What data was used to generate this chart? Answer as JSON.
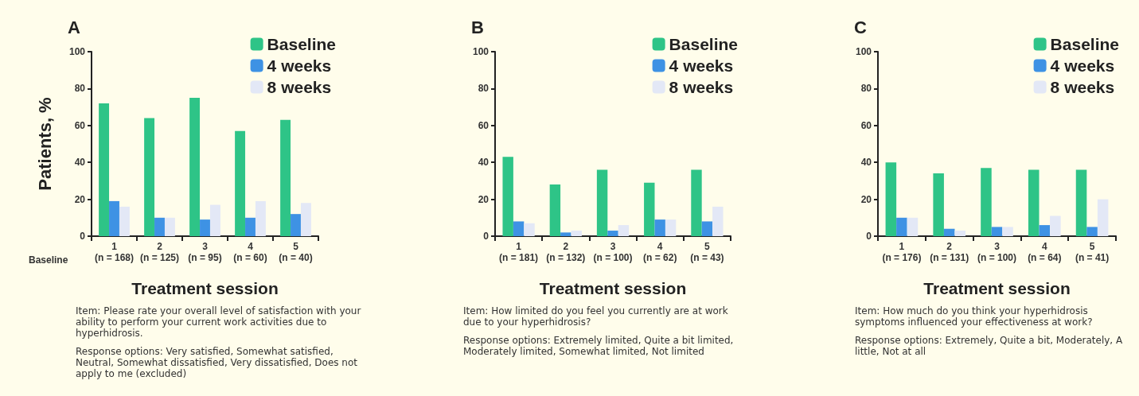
{
  "chart_data": [
    {
      "type": "bar",
      "title": "A",
      "ylabel": "Patients, %",
      "xlabel": "Treatment session",
      "categories": [
        "1\n(n = 168)",
        "2\n(n = 125)",
        "3\n(n = 95)",
        "4\n(n = 60)",
        "5\n(n = 40)"
      ],
      "series": [
        {
          "name": "Baseline",
          "color": "#2ec487",
          "values": [
            72,
            64,
            75,
            57,
            63
          ]
        },
        {
          "name": "4 weeks",
          "color": "#3e92e4",
          "values": [
            19,
            10,
            9,
            10,
            12
          ]
        },
        {
          "name": "8 weeks",
          "color": "#e3e8f6",
          "values": [
            16,
            10,
            17,
            19,
            18
          ]
        }
      ],
      "ylim": [
        0,
        100
      ],
      "yticks": [
        0,
        20,
        40,
        60,
        80,
        100
      ],
      "grid": false,
      "legend": "top right",
      "annotations": [
        "Baseline",
        "Item: Please rate your overall level of satisfaction with your ability to perform your current work activities due to hyperhidrosis.",
        "Response options: Very satisfied, Somewhat satisfied, Neutral, Somewhat dissatisfied, Very dissatisfied, Does not apply to me (excluded)"
      ]
    },
    {
      "type": "bar",
      "title": "B",
      "xlabel": "Treatment session",
      "categories": [
        "1\n(n = 181)",
        "2\n(n = 132)",
        "3\n(n = 100)",
        "4\n(n = 62)",
        "5\n(n = 43)"
      ],
      "series": [
        {
          "name": "Baseline",
          "color": "#2ec487",
          "values": [
            43,
            28,
            36,
            29,
            36
          ]
        },
        {
          "name": "4 weeks",
          "color": "#3e92e4",
          "values": [
            8,
            2,
            3,
            9,
            8
          ]
        },
        {
          "name": "8 weeks",
          "color": "#e3e8f6",
          "values": [
            7,
            3,
            6,
            9,
            16
          ]
        }
      ],
      "ylim": [
        0,
        100
      ],
      "yticks": [
        0,
        20,
        40,
        60,
        80,
        100
      ],
      "grid": false,
      "legend": "top right",
      "annotations": [
        "Item: How limited do you feel you currently are at work due to your hyperhidrosis?",
        "Response options: Extremely limited, Quite a bit limited, Moderately limited, Somewhat limited, Not limited"
      ]
    },
    {
      "type": "bar",
      "title": "C",
      "xlabel": "Treatment session",
      "categories": [
        "1\n(n = 176)",
        "2\n(n = 131)",
        "3\n(n = 100)",
        "4\n(n = 64)",
        "5\n(n = 41)"
      ],
      "series": [
        {
          "name": "Baseline",
          "color": "#2ec487",
          "values": [
            40,
            34,
            37,
            36,
            36
          ]
        },
        {
          "name": "4 weeks",
          "color": "#3e92e4",
          "values": [
            10,
            4,
            5,
            6,
            5
          ]
        },
        {
          "name": "8 weeks",
          "color": "#e3e8f6",
          "values": [
            10,
            3,
            5,
            11,
            20
          ]
        }
      ],
      "ylim": [
        0,
        100
      ],
      "yticks": [
        0,
        20,
        40,
        60,
        80,
        100
      ],
      "grid": false,
      "legend": "top right",
      "annotations": [
        "Item: How much do you think your hyperhidrosis symptoms influenced your effectiveness at work?",
        "Response options: Extremely, Quite a bit, Moderately, A little, Not at all"
      ]
    }
  ]
}
